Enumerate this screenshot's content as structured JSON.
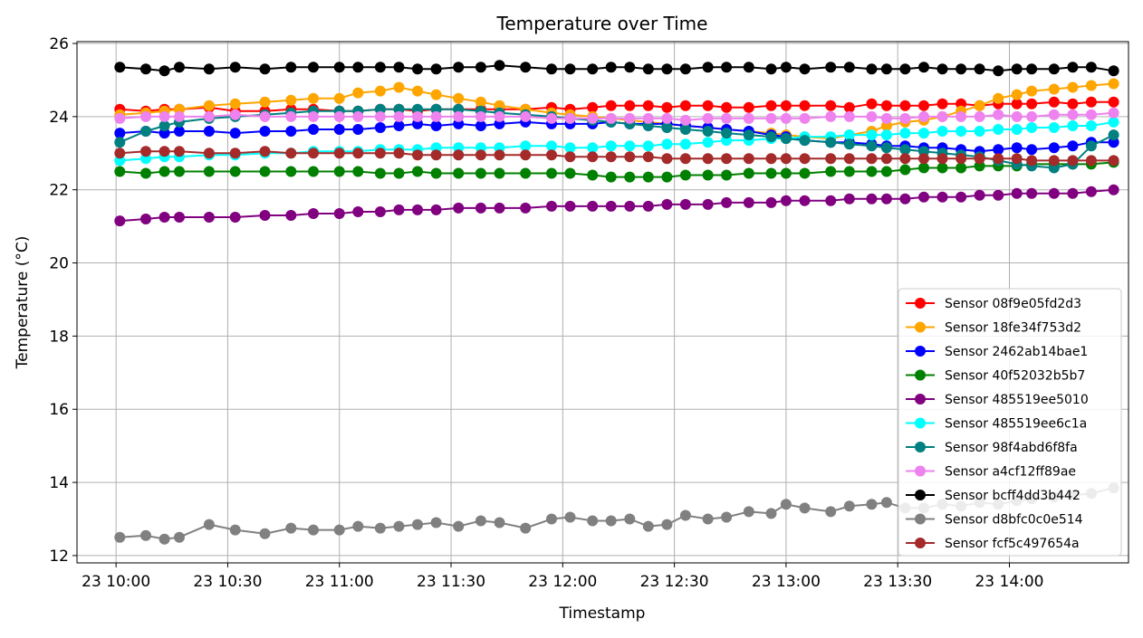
{
  "chart_data": {
    "type": "line",
    "title": "Temperature over Time",
    "xlabel": "Timestamp",
    "ylabel": "Temperature (°C)",
    "x_ticks": [
      "23 10:00",
      "23 10:30",
      "23 11:00",
      "23 11:30",
      "23 12:00",
      "23 12:30",
      "23 13:00",
      "23 13:30",
      "23 14:00"
    ],
    "y_ticks": [
      "12",
      "14",
      "16",
      "18",
      "20",
      "22",
      "24",
      "26"
    ],
    "ylim": [
      11.8,
      26.05
    ],
    "xlim_minutes": [
      -10.5,
      272
    ],
    "grid": true,
    "legend_position": "lower-right",
    "series": [
      {
        "name": "Sensor 08f9e05fd2d3",
        "color": "#ff0000",
        "x": [
          1,
          8,
          13,
          17,
          25,
          32,
          40,
          47,
          53,
          60,
          65,
          71,
          76,
          81,
          86,
          92,
          98,
          103,
          110,
          117,
          122,
          128,
          133,
          138,
          143,
          148,
          153,
          159,
          164,
          170,
          176,
          180,
          185,
          192,
          197,
          203,
          207,
          212,
          217,
          222,
          227,
          232,
          237,
          242,
          246,
          252,
          257,
          262,
          268
        ],
        "y": [
          24.2,
          24.15,
          24.2,
          24.2,
          24.25,
          24.15,
          24.15,
          24.2,
          24.2,
          24.15,
          24.15,
          24.2,
          24.2,
          24.15,
          24.2,
          24.2,
          24.2,
          24.2,
          24.2,
          24.25,
          24.2,
          24.25,
          24.3,
          24.3,
          24.3,
          24.25,
          24.3,
          24.3,
          24.25,
          24.25,
          24.3,
          24.3,
          24.3,
          24.3,
          24.25,
          24.35,
          24.3,
          24.3,
          24.3,
          24.35,
          24.35,
          24.3,
          24.35,
          24.35,
          24.35,
          24.4,
          24.35,
          24.4,
          24.4
        ]
      },
      {
        "name": "Sensor 18fe34f753d2",
        "color": "#ffa500",
        "x": [
          1,
          8,
          13,
          17,
          25,
          32,
          40,
          47,
          53,
          60,
          65,
          71,
          76,
          81,
          86,
          92,
          98,
          103,
          110,
          117,
          122,
          128,
          133,
          138,
          143,
          148,
          153,
          159,
          164,
          170,
          176,
          180,
          185,
          192,
          197,
          203,
          207,
          212,
          217,
          222,
          227,
          232,
          237,
          242,
          246,
          252,
          257,
          262,
          268
        ],
        "y": [
          24.05,
          24.1,
          24.15,
          24.2,
          24.3,
          24.35,
          24.4,
          24.45,
          24.5,
          24.5,
          24.65,
          24.7,
          24.8,
          24.7,
          24.6,
          24.5,
          24.4,
          24.3,
          24.2,
          24.1,
          24.05,
          24.0,
          23.95,
          23.9,
          23.85,
          23.8,
          23.75,
          23.7,
          23.65,
          23.6,
          23.55,
          23.5,
          23.45,
          23.4,
          23.5,
          23.6,
          23.75,
          23.85,
          23.9,
          24.0,
          24.15,
          24.3,
          24.5,
          24.6,
          24.7,
          24.75,
          24.8,
          24.85,
          24.9
        ]
      },
      {
        "name": "Sensor 2462ab14bae1",
        "color": "#0000ff",
        "x": [
          1,
          8,
          13,
          17,
          25,
          32,
          40,
          47,
          53,
          60,
          65,
          71,
          76,
          81,
          86,
          92,
          98,
          103,
          110,
          117,
          122,
          128,
          133,
          138,
          143,
          148,
          153,
          159,
          164,
          170,
          176,
          180,
          185,
          192,
          197,
          203,
          207,
          212,
          217,
          222,
          227,
          232,
          237,
          242,
          246,
          252,
          257,
          262,
          268
        ],
        "y": [
          23.55,
          23.6,
          23.55,
          23.6,
          23.6,
          23.55,
          23.6,
          23.6,
          23.65,
          23.65,
          23.65,
          23.7,
          23.75,
          23.8,
          23.75,
          23.8,
          23.75,
          23.8,
          23.85,
          23.8,
          23.8,
          23.8,
          23.85,
          23.8,
          23.8,
          23.8,
          23.75,
          23.7,
          23.65,
          23.6,
          23.5,
          23.45,
          23.35,
          23.3,
          23.3,
          23.25,
          23.2,
          23.2,
          23.15,
          23.15,
          23.1,
          23.05,
          23.1,
          23.15,
          23.1,
          23.15,
          23.2,
          23.3,
          23.3
        ]
      },
      {
        "name": "Sensor 40f52032b5b7",
        "color": "#008000",
        "x": [
          1,
          8,
          13,
          17,
          25,
          32,
          40,
          47,
          53,
          60,
          65,
          71,
          76,
          81,
          86,
          92,
          98,
          103,
          110,
          117,
          122,
          128,
          133,
          138,
          143,
          148,
          153,
          159,
          164,
          170,
          176,
          180,
          185,
          192,
          197,
          203,
          207,
          212,
          217,
          222,
          227,
          232,
          237,
          242,
          246,
          252,
          257,
          262,
          268
        ],
        "y": [
          22.5,
          22.45,
          22.5,
          22.5,
          22.5,
          22.5,
          22.5,
          22.5,
          22.5,
          22.5,
          22.5,
          22.45,
          22.45,
          22.5,
          22.45,
          22.45,
          22.45,
          22.45,
          22.45,
          22.45,
          22.45,
          22.4,
          22.35,
          22.35,
          22.35,
          22.35,
          22.4,
          22.4,
          22.4,
          22.45,
          22.45,
          22.45,
          22.45,
          22.5,
          22.5,
          22.5,
          22.5,
          22.55,
          22.6,
          22.6,
          22.6,
          22.65,
          22.65,
          22.65,
          22.7,
          22.7,
          22.7,
          22.7,
          22.75
        ]
      },
      {
        "name": "Sensor 485519ee5010",
        "color": "#800080",
        "x": [
          1,
          8,
          13,
          17,
          25,
          32,
          40,
          47,
          53,
          60,
          65,
          71,
          76,
          81,
          86,
          92,
          98,
          103,
          110,
          117,
          122,
          128,
          133,
          138,
          143,
          148,
          153,
          159,
          164,
          170,
          176,
          180,
          185,
          192,
          197,
          203,
          207,
          212,
          217,
          222,
          227,
          232,
          237,
          242,
          246,
          252,
          257,
          262,
          268
        ],
        "y": [
          21.15,
          21.2,
          21.25,
          21.25,
          21.25,
          21.25,
          21.3,
          21.3,
          21.35,
          21.35,
          21.4,
          21.4,
          21.45,
          21.45,
          21.45,
          21.5,
          21.5,
          21.5,
          21.5,
          21.55,
          21.55,
          21.55,
          21.55,
          21.55,
          21.55,
          21.6,
          21.6,
          21.6,
          21.65,
          21.65,
          21.65,
          21.7,
          21.7,
          21.7,
          21.75,
          21.75,
          21.75,
          21.75,
          21.8,
          21.8,
          21.8,
          21.85,
          21.85,
          21.9,
          21.9,
          21.9,
          21.9,
          21.95,
          22.0
        ]
      },
      {
        "name": "Sensor 485519ee6c1a",
        "color": "#00ffff",
        "x": [
          1,
          8,
          13,
          17,
          25,
          32,
          40,
          47,
          53,
          60,
          65,
          71,
          76,
          81,
          86,
          92,
          98,
          103,
          110,
          117,
          122,
          128,
          133,
          138,
          143,
          148,
          153,
          159,
          164,
          170,
          176,
          180,
          185,
          192,
          197,
          203,
          207,
          212,
          217,
          222,
          227,
          232,
          237,
          242,
          246,
          252,
          257,
          262,
          268
        ],
        "y": [
          22.8,
          22.85,
          22.9,
          22.9,
          22.95,
          22.95,
          23.0,
          23.0,
          23.05,
          23.05,
          23.05,
          23.1,
          23.1,
          23.1,
          23.15,
          23.15,
          23.15,
          23.15,
          23.2,
          23.2,
          23.15,
          23.15,
          23.2,
          23.2,
          23.2,
          23.25,
          23.25,
          23.3,
          23.35,
          23.35,
          23.4,
          23.4,
          23.45,
          23.45,
          23.5,
          23.5,
          23.5,
          23.55,
          23.55,
          23.6,
          23.6,
          23.6,
          23.65,
          23.65,
          23.7,
          23.7,
          23.75,
          23.75,
          23.85
        ]
      },
      {
        "name": "Sensor 98f4abd6f8fa",
        "color": "#008080",
        "x": [
          1,
          8,
          13,
          17,
          25,
          32,
          40,
          47,
          53,
          60,
          65,
          71,
          76,
          81,
          86,
          92,
          98,
          103,
          110,
          117,
          122,
          128,
          133,
          138,
          143,
          148,
          153,
          159,
          164,
          170,
          176,
          180,
          185,
          192,
          197,
          203,
          207,
          212,
          217,
          222,
          227,
          232,
          237,
          242,
          246,
          252,
          257,
          262,
          268
        ],
        "y": [
          23.3,
          23.6,
          23.75,
          23.85,
          23.95,
          24.0,
          24.05,
          24.1,
          24.15,
          24.15,
          24.15,
          24.2,
          24.2,
          24.2,
          24.2,
          24.2,
          24.15,
          24.1,
          24.05,
          24.0,
          23.95,
          23.9,
          23.85,
          23.8,
          23.75,
          23.7,
          23.65,
          23.6,
          23.55,
          23.5,
          23.45,
          23.4,
          23.35,
          23.3,
          23.25,
          23.2,
          23.15,
          23.1,
          23.05,
          23.0,
          22.95,
          22.9,
          22.8,
          22.7,
          22.65,
          22.6,
          22.7,
          23.2,
          23.5
        ]
      },
      {
        "name": "Sensor a4cf12ff89ae",
        "color": "#ee82ee",
        "x": [
          1,
          8,
          13,
          17,
          25,
          32,
          40,
          47,
          53,
          60,
          65,
          71,
          76,
          81,
          86,
          92,
          98,
          103,
          110,
          117,
          122,
          128,
          133,
          138,
          143,
          148,
          153,
          159,
          164,
          170,
          176,
          180,
          185,
          192,
          197,
          203,
          207,
          212,
          217,
          222,
          227,
          232,
          237,
          242,
          246,
          252,
          257,
          262,
          268
        ],
        "y": [
          23.95,
          24.0,
          24.0,
          24.0,
          24.0,
          24.05,
          24.0,
          24.0,
          24.0,
          24.0,
          24.0,
          24.0,
          24.0,
          24.0,
          24.0,
          24.0,
          24.0,
          24.0,
          24.0,
          23.95,
          23.95,
          23.95,
          23.95,
          23.95,
          23.95,
          23.95,
          23.9,
          23.95,
          23.95,
          23.95,
          23.95,
          23.95,
          23.95,
          24.0,
          24.0,
          24.0,
          23.95,
          23.95,
          24.0,
          24.0,
          24.0,
          24.0,
          24.05,
          24.0,
          24.0,
          24.05,
          24.05,
          24.05,
          24.1
        ]
      },
      {
        "name": "Sensor bcff4dd3b442",
        "color": "#000000",
        "x": [
          1,
          8,
          13,
          17,
          25,
          32,
          40,
          47,
          53,
          60,
          65,
          71,
          76,
          81,
          86,
          92,
          98,
          103,
          110,
          117,
          122,
          128,
          133,
          138,
          143,
          148,
          153,
          159,
          164,
          170,
          176,
          180,
          185,
          192,
          197,
          203,
          207,
          212,
          217,
          222,
          227,
          232,
          237,
          242,
          246,
          252,
          257,
          262,
          268
        ],
        "y": [
          25.35,
          25.3,
          25.25,
          25.35,
          25.3,
          25.35,
          25.3,
          25.35,
          25.35,
          25.35,
          25.35,
          25.35,
          25.35,
          25.3,
          25.3,
          25.35,
          25.35,
          25.4,
          25.35,
          25.3,
          25.3,
          25.3,
          25.35,
          25.35,
          25.3,
          25.3,
          25.3,
          25.35,
          25.35,
          25.35,
          25.3,
          25.35,
          25.3,
          25.35,
          25.35,
          25.3,
          25.3,
          25.3,
          25.35,
          25.3,
          25.3,
          25.3,
          25.25,
          25.3,
          25.3,
          25.3,
          25.35,
          25.35,
          25.25
        ]
      },
      {
        "name": "Sensor d8bfc0c0e514",
        "color": "#808080",
        "x": [
          1,
          8,
          13,
          17,
          25,
          32,
          40,
          47,
          53,
          60,
          65,
          71,
          76,
          81,
          86,
          92,
          98,
          103,
          110,
          117,
          122,
          128,
          133,
          138,
          143,
          148,
          153,
          159,
          164,
          170,
          176,
          180,
          185,
          192,
          197,
          203,
          207,
          212,
          217,
          222,
          227,
          232,
          237,
          242,
          246,
          252,
          257,
          262,
          268
        ],
        "y": [
          12.5,
          12.55,
          12.45,
          12.5,
          12.85,
          12.7,
          12.6,
          12.75,
          12.7,
          12.7,
          12.8,
          12.75,
          12.8,
          12.85,
          12.9,
          12.8,
          12.95,
          12.9,
          12.75,
          13.0,
          13.05,
          12.95,
          12.95,
          13.0,
          12.8,
          12.85,
          13.1,
          13.0,
          13.05,
          13.2,
          13.15,
          13.4,
          13.3,
          13.2,
          13.35,
          13.4,
          13.45,
          13.3,
          13.3,
          13.4,
          13.35,
          13.45,
          13.4,
          13.5,
          13.55,
          13.6,
          13.65,
          13.7,
          13.85
        ]
      },
      {
        "name": "Sensor fcf5c497654a",
        "color": "#a52a2a",
        "x": [
          1,
          8,
          13,
          17,
          25,
          32,
          40,
          47,
          53,
          60,
          65,
          71,
          76,
          81,
          86,
          92,
          98,
          103,
          110,
          117,
          122,
          128,
          133,
          138,
          143,
          148,
          153,
          159,
          164,
          170,
          176,
          180,
          185,
          192,
          197,
          203,
          207,
          212,
          217,
          222,
          227,
          232,
          237,
          242,
          246,
          252,
          257,
          262,
          268
        ],
        "y": [
          23.0,
          23.05,
          23.05,
          23.05,
          23.0,
          23.0,
          23.05,
          23.0,
          23.0,
          23.0,
          23.0,
          23.0,
          23.0,
          22.95,
          22.95,
          22.95,
          22.95,
          22.95,
          22.95,
          22.95,
          22.9,
          22.9,
          22.9,
          22.9,
          22.9,
          22.85,
          22.85,
          22.85,
          22.85,
          22.85,
          22.85,
          22.85,
          22.85,
          22.85,
          22.85,
          22.85,
          22.85,
          22.85,
          22.85,
          22.85,
          22.85,
          22.85,
          22.85,
          22.85,
          22.8,
          22.8,
          22.8,
          22.8,
          22.8
        ]
      }
    ]
  }
}
